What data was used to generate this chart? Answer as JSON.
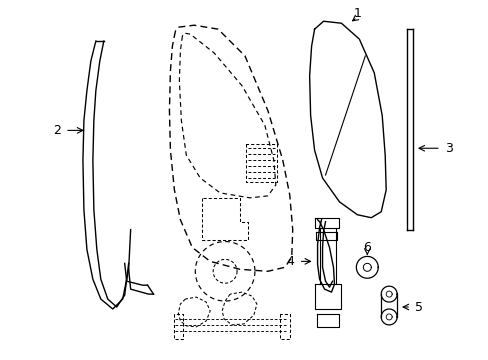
{
  "background_color": "#ffffff",
  "line_color": "#000000",
  "figsize": [
    4.89,
    3.6
  ],
  "dpi": 100,
  "label_fontsize": 9
}
